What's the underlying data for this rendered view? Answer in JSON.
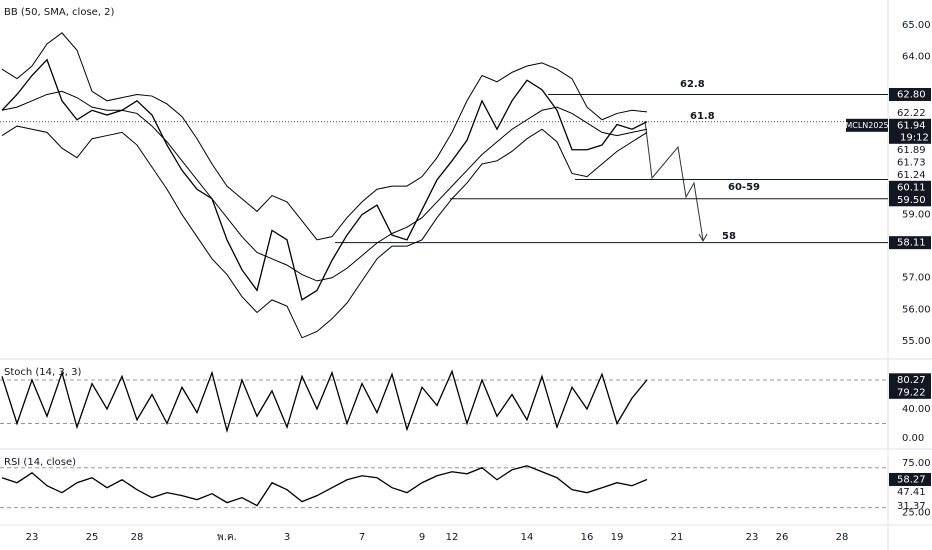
{
  "chart_data": [
    {
      "type": "line",
      "title": "BB (50, SMA, close, 2)",
      "symbol": "MCLN2025",
      "countdown": "19:12",
      "categories": [
        null,
        null,
        "23",
        null,
        null,
        null,
        "25",
        null,
        null,
        "28",
        null,
        null,
        null,
        null,
        null,
        "พ.ค.",
        null,
        null,
        null,
        "3",
        null,
        null,
        null,
        null,
        "7",
        null,
        null,
        null,
        "9",
        null,
        "12",
        null,
        null,
        null,
        null,
        "14",
        null,
        null,
        null,
        "16",
        null,
        "19",
        null,
        null,
        null,
        "21",
        null,
        null,
        null,
        null,
        "23",
        null,
        "26",
        null,
        null,
        null,
        "28",
        null,
        null
      ],
      "series": [
        {
          "color": "#000000",
          "values": [
            62.3,
            62.8,
            63.4,
            63.9,
            62.6,
            62.0,
            62.3,
            62.15,
            62.3,
            62.6,
            62.15,
            61.2,
            60.4,
            59.8,
            59.5,
            58.2,
            57.25,
            56.6,
            58.5,
            58.2,
            56.3,
            56.6,
            57.55,
            58.35,
            59.0,
            59.3,
            58.35,
            58.2,
            59.15,
            60.1,
            60.7,
            61.35,
            62.6,
            61.7,
            62.6,
            63.25,
            62.95,
            62.3,
            61.05,
            61.05,
            61.2,
            61.85,
            61.7,
            61.94,
            null,
            null,
            null,
            null,
            null,
            null,
            null,
            null,
            null,
            null,
            null,
            null,
            null,
            null,
            null
          ]
        },
        {
          "color": "#000000",
          "values": [
            63.6,
            63.3,
            63.7,
            64.4,
            64.75,
            64.2,
            62.9,
            62.6,
            62.7,
            62.8,
            62.75,
            62.5,
            62.1,
            61.4,
            60.6,
            59.9,
            59.5,
            59.1,
            59.6,
            59.4,
            58.8,
            58.2,
            58.3,
            58.9,
            59.4,
            59.8,
            59.9,
            59.9,
            60.2,
            60.8,
            61.6,
            62.6,
            63.4,
            63.2,
            63.5,
            63.7,
            63.8,
            63.6,
            63.3,
            62.4,
            62.0,
            62.2,
            62.3,
            62.25,
            null,
            null,
            null,
            null,
            null,
            null,
            null,
            null,
            null,
            null,
            null,
            null,
            null,
            null,
            null
          ]
        },
        {
          "color": "#000000",
          "values": [
            62.3,
            62.4,
            62.6,
            62.8,
            62.9,
            62.7,
            62.4,
            62.3,
            62.3,
            62.2,
            61.8,
            61.3,
            60.7,
            60.1,
            59.5,
            58.9,
            58.3,
            57.8,
            57.6,
            57.4,
            57.1,
            56.9,
            57.0,
            57.3,
            57.7,
            58.1,
            58.4,
            58.6,
            58.9,
            59.4,
            59.9,
            60.4,
            60.9,
            61.3,
            61.7,
            62.0,
            62.3,
            62.4,
            62.2,
            61.9,
            61.6,
            61.5,
            61.6,
            61.7,
            null,
            null,
            null,
            null,
            null,
            null,
            null,
            null,
            null,
            null,
            null,
            null,
            null,
            null,
            null
          ]
        },
        {
          "color": "#000000",
          "values": [
            61.5,
            61.8,
            61.7,
            61.6,
            61.1,
            60.8,
            61.4,
            61.5,
            61.6,
            61.2,
            60.5,
            59.8,
            59.0,
            58.3,
            57.6,
            57.1,
            56.4,
            55.9,
            56.3,
            56.1,
            55.1,
            55.3,
            55.7,
            56.2,
            56.9,
            57.6,
            58.0,
            58.0,
            58.2,
            58.9,
            59.5,
            60.0,
            60.6,
            60.7,
            61.0,
            61.4,
            61.7,
            61.3,
            60.3,
            60.2,
            60.6,
            61.0,
            61.3,
            61.6,
            null,
            null,
            null,
            null,
            null,
            null,
            null,
            null,
            null,
            null,
            null,
            null,
            null,
            null,
            null
          ]
        }
      ],
      "ylim": [
        54.46,
        65.79
      ],
      "yticks": [
        {
          "value": 55,
          "label": "55.00"
        },
        {
          "value": 56,
          "label": "56.00"
        },
        {
          "value": 57,
          "label": "57.00"
        },
        {
          "value": 59,
          "label": "59.00"
        },
        {
          "value": 64,
          "label": "64.00"
        },
        {
          "value": 65,
          "label": "65.00"
        }
      ],
      "last_price": 61.94,
      "levels": [
        62.8,
        60.11,
        59.5,
        58.11
      ],
      "annotations": [
        "62.8",
        "61.8",
        "60-59",
        "58"
      ],
      "price_tags": [
        {
          "value": 62.8,
          "label": "62.80",
          "boxed": true
        },
        {
          "value": 62.22,
          "label": "62.22",
          "boxed": false
        },
        {
          "value": 61.94,
          "label": "61.94",
          "boxed": true
        },
        {
          "value": 61.89,
          "label": "61.89",
          "boxed": false
        },
        {
          "value": 61.73,
          "label": "61.73",
          "boxed": false
        },
        {
          "value": 61.24,
          "label": "61.24",
          "boxed": false
        },
        {
          "value": 60.11,
          "label": "60.11",
          "boxed": true
        },
        {
          "value": 59.5,
          "label": "59.50",
          "boxed": true
        },
        {
          "value": 58.11,
          "label": "58.11",
          "boxed": true
        }
      ]
    },
    {
      "type": "line",
      "title": "Stoch (14, 3, 3)",
      "series": [
        {
          "color": "#000000",
          "values": [
            85,
            20,
            80,
            30,
            90,
            15,
            75,
            40,
            85,
            25,
            60,
            20,
            70,
            35,
            90,
            10,
            80,
            30,
            65,
            15,
            85,
            40,
            90,
            20,
            75,
            35,
            88,
            12,
            70,
            45,
            92,
            20,
            80,
            30,
            60,
            25,
            85,
            15,
            70,
            40,
            88,
            20,
            55,
            80.27,
            null,
            null,
            null,
            null,
            null,
            null,
            null,
            null,
            null,
            null,
            null,
            null,
            null,
            null,
            null
          ]
        }
      ],
      "ylim": [
        -13.8,
        107.6
      ],
      "yticks": [
        {
          "value": 0,
          "label": "0.00"
        },
        {
          "value": 40,
          "label": "40.00"
        }
      ],
      "bands": [
        20,
        80
      ],
      "price_tags": [
        {
          "value": 80.27,
          "label": "80.27",
          "boxed": true
        },
        {
          "value": 79.22,
          "label": "79.22",
          "boxed": true
        }
      ]
    },
    {
      "type": "line",
      "title": "RSI (14, close)",
      "series": [
        {
          "color": "#000000",
          "values": [
            60,
            55,
            65,
            52,
            45,
            55,
            60,
            50,
            58,
            48,
            40,
            45,
            42,
            38,
            44,
            35,
            40,
            32,
            55,
            48,
            36,
            42,
            50,
            58,
            62,
            60,
            50,
            45,
            55,
            62,
            66,
            64,
            70,
            58,
            68,
            72,
            66,
            60,
            48,
            45,
            50,
            55,
            52,
            58.27,
            null,
            null,
            null,
            null,
            null,
            null,
            null,
            null,
            null,
            null,
            null,
            null,
            null,
            null,
            null
          ]
        }
      ],
      "ylim": [
        13.5,
        87.9
      ],
      "yticks": [
        {
          "value": 25,
          "label": "25.00"
        },
        {
          "value": 75,
          "label": "75.00"
        }
      ],
      "bands": [
        30,
        70
      ],
      "price_tags": [
        {
          "value": 58.27,
          "label": "58.27",
          "boxed": true
        },
        {
          "value": 47.41,
          "label": "47.41",
          "boxed": false
        },
        {
          "value": 31.37,
          "label": "31.37",
          "boxed": false
        }
      ]
    }
  ]
}
